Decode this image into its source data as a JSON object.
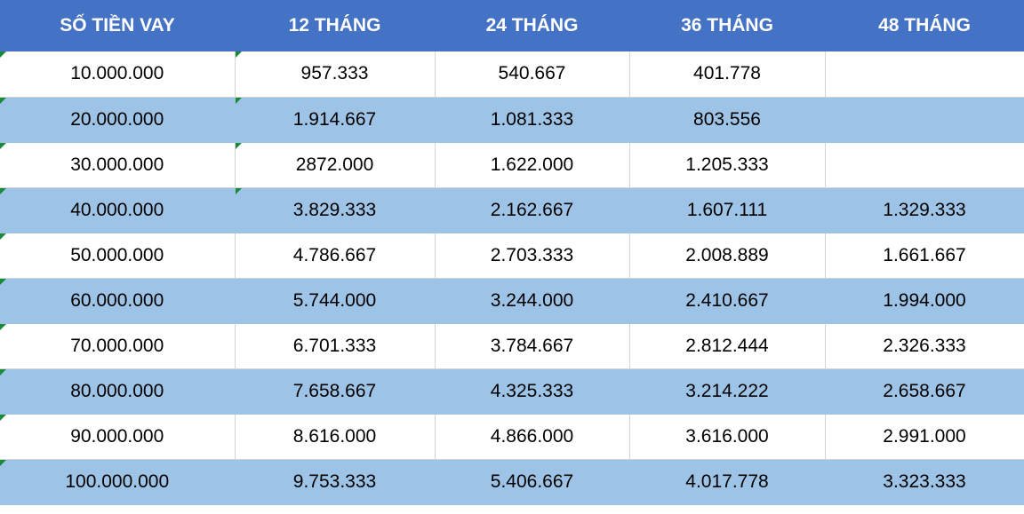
{
  "table": {
    "headers": [
      "SỐ TIỀN VAY",
      "12 THÁNG",
      "24 THÁNG",
      "36 THÁNG",
      "48 THÁNG"
    ],
    "rows": [
      [
        "10.000.000",
        "957.333",
        "540.667",
        "401.778",
        ""
      ],
      [
        "20.000.000",
        "1.914.667",
        "1.081.333",
        "803.556",
        ""
      ],
      [
        "30.000.000",
        "2872.000",
        "1.622.000",
        "1.205.333",
        ""
      ],
      [
        "40.000.000",
        "3.829.333",
        "2.162.667",
        "1.607.111",
        "1.329.333"
      ],
      [
        "50.000.000",
        "4.786.667",
        "2.703.333",
        "2.008.889",
        "1.661.667"
      ],
      [
        "60.000.000",
        "5.744.000",
        "3.244.000",
        "2.410.667",
        "1.994.000"
      ],
      [
        "70.000.000",
        "6.701.333",
        "3.784.667",
        "2.812.444",
        "2.326.333"
      ],
      [
        "80.000.000",
        "7.658.667",
        "4.325.333",
        "3.214.222",
        "2.658.667"
      ],
      [
        "90.000.000",
        "8.616.000",
        "4.866.000",
        "3.616.000",
        "2.991.000"
      ],
      [
        "100.000.000",
        "9.753.333",
        "5.406.667",
        "4.017.778",
        "3.323.333"
      ]
    ]
  },
  "colors": {
    "header_bg": "#4472c4",
    "header_text": "#ffffff",
    "row_alt_bg": "#9dc3e6",
    "row_bg": "#ffffff",
    "text_flag": "#1a8a3a"
  }
}
